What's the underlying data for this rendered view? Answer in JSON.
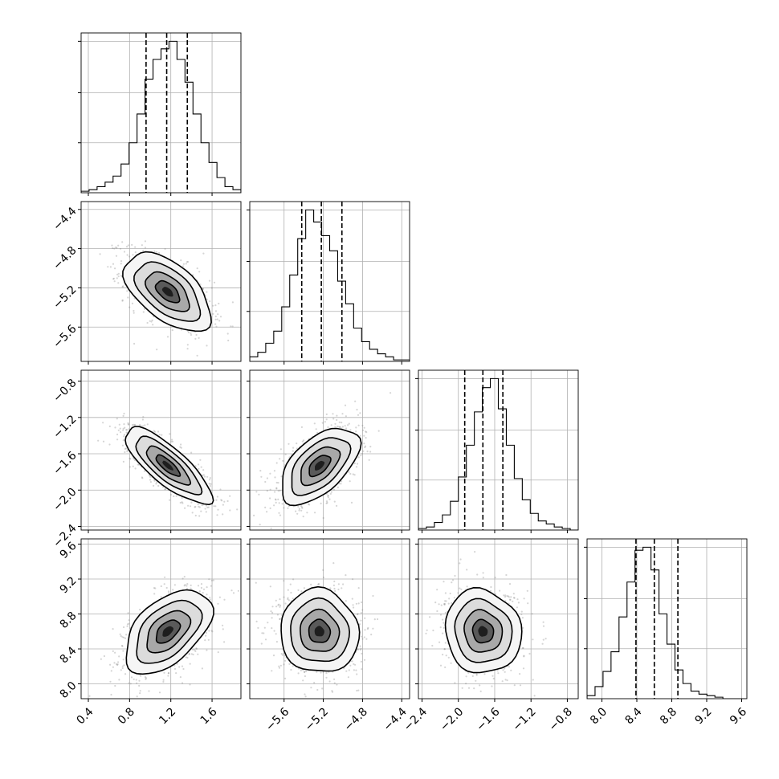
{
  "chart_data": {
    "type": "corner",
    "parameters": 4,
    "grid": true,
    "xticks": [
      [
        "0.4",
        "0.8",
        "1.2",
        "1.6"
      ],
      [
        "−5.6",
        "−5.2",
        "−4.8",
        "−4.4"
      ],
      [
        "−2.4",
        "−2.0",
        "−1.6",
        "−1.2",
        "−0.8"
      ],
      [
        "8.0",
        "8.4",
        "8.8",
        "9.2",
        "9.6"
      ]
    ],
    "yticks": [
      [],
      [
        "−4.4",
        "−4.8",
        "−5.2",
        "−5.6"
      ],
      [
        "−0.8",
        "−1.2",
        "−1.6",
        "−2.0",
        "−2.4"
      ],
      [
        "9.6",
        "9.2",
        "8.8",
        "8.4",
        "8.0"
      ]
    ],
    "ranges": [
      [
        0.33,
        1.88
      ],
      [
        -5.95,
        -4.32
      ],
      [
        -2.44,
        -0.68
      ],
      [
        7.83,
        9.66
      ]
    ],
    "quantiles": [
      [
        0.96,
        1.16,
        1.36
      ],
      [
        -5.42,
        -5.22,
        -5.01
      ],
      [
        -1.93,
        -1.73,
        -1.51
      ],
      [
        8.39,
        8.6,
        8.87
      ]
    ],
    "marginals": [
      {
        "edges_start": 0.33,
        "bin_width": 0.0775,
        "counts": [
          1,
          2,
          4,
          7,
          11,
          19,
          33,
          52,
          75,
          88,
          95,
          100,
          88,
          73,
          52,
          33,
          20,
          10,
          4,
          2
        ]
      },
      {
        "edges_start": -5.95,
        "bin_width": 0.0815,
        "counts": [
          3,
          6,
          12,
          20,
          36,
          57,
          81,
          100,
          92,
          83,
          73,
          53,
          38,
          22,
          13,
          8,
          5,
          3,
          1,
          1
        ]
      },
      {
        "edges_start": -2.44,
        "bin_width": 0.088,
        "counts": [
          1,
          2,
          5,
          10,
          19,
          35,
          56,
          78,
          94,
          100,
          80,
          56,
          34,
          20,
          11,
          6,
          4,
          2,
          1,
          0
        ]
      },
      {
        "edges_start": 7.83,
        "bin_width": 0.0915,
        "counts": [
          2,
          8,
          18,
          31,
          54,
          77,
          98,
          100,
          85,
          56,
          36,
          19,
          10,
          5,
          3,
          2,
          1,
          0,
          0,
          0
        ]
      }
    ],
    "pairs": [
      {
        "row": 1,
        "col": 0,
        "mean": [
          1.17,
          -5.24
        ],
        "sigma": [
          0.21,
          0.2
        ],
        "rho": -0.55
      },
      {
        "row": 2,
        "col": 0,
        "mean": [
          1.17,
          -1.73
        ],
        "sigma": [
          0.21,
          0.21
        ],
        "rho": -0.8
      },
      {
        "row": 2,
        "col": 1,
        "mean": [
          -5.24,
          -1.73
        ],
        "sigma": [
          0.2,
          0.21
        ],
        "rho": 0.55
      },
      {
        "row": 3,
        "col": 0,
        "mean": [
          1.17,
          8.6
        ],
        "sigma": [
          0.21,
          0.24
        ],
        "rho": 0.5
      },
      {
        "row": 3,
        "col": 1,
        "mean": [
          -5.24,
          8.6
        ],
        "sigma": [
          0.2,
          0.24
        ],
        "rho": -0.05
      },
      {
        "row": 3,
        "col": 2,
        "mean": [
          -1.73,
          8.6
        ],
        "sigma": [
          0.21,
          0.24
        ],
        "rho": -0.08
      }
    ]
  }
}
